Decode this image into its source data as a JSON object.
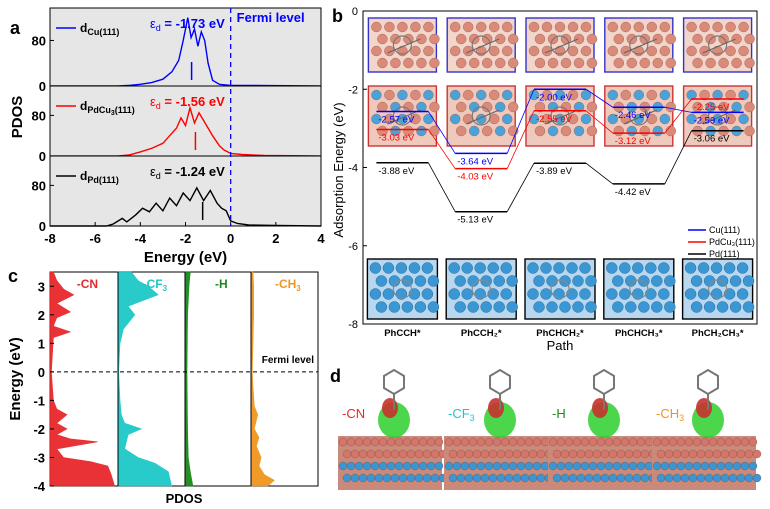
{
  "colors": {
    "cu": "#0000ff",
    "pdcu": "#ff0000",
    "pd": "#000000",
    "cn": "#e8282b",
    "cf3": "#1ec8c8",
    "h": "#1a8a1a",
    "ch3": "#f0961e",
    "slab_fill": "#7fb0d8"
  },
  "panel_letters": {
    "a": "a",
    "b": "b",
    "c": "c",
    "d": "d"
  },
  "chart_data": [
    {
      "id": "a",
      "type": "line",
      "xlabel": "Energy (eV)",
      "ylabel": "PDOS",
      "xlim": [
        -8,
        4
      ],
      "xticks": [
        "-8",
        "-6",
        "-4",
        "-2",
        "0",
        "2",
        "4"
      ],
      "fermi_label": "Fermi level",
      "series": [
        {
          "key": "cu",
          "name": "d",
          "sub": "Cu(111)",
          "ed_label": "ε",
          "ed_sub": "d",
          "ed_value": " = -1.73 eV",
          "yticks": [
            "0",
            "80"
          ],
          "ylim": [
            0,
            130
          ],
          "center": -1.73,
          "points": [
            [
              -8,
              0
            ],
            [
              -5,
              0
            ],
            [
              -4.5,
              1
            ],
            [
              -4,
              3
            ],
            [
              -3.5,
              6
            ],
            [
              -3,
              12
            ],
            [
              -2.6,
              25
            ],
            [
              -2.3,
              45
            ],
            [
              -2.1,
              80
            ],
            [
              -1.9,
              120
            ],
            [
              -1.75,
              85
            ],
            [
              -1.6,
              100
            ],
            [
              -1.45,
              70
            ],
            [
              -1.3,
              95
            ],
            [
              -1.15,
              80
            ],
            [
              -1.0,
              40
            ],
            [
              -0.8,
              10
            ],
            [
              -0.5,
              3
            ],
            [
              0,
              1
            ],
            [
              1,
              1
            ],
            [
              4,
              0
            ]
          ]
        },
        {
          "key": "pdcu",
          "name": "d",
          "sub": "PdCu",
          "sub2": "3",
          "sub3": "(111)",
          "ed_label": "ε",
          "ed_sub": "d",
          "ed_value": " = -1.56 eV",
          "yticks": [
            "0",
            "80"
          ],
          "ylim": [
            0,
            130
          ],
          "center": -1.56,
          "points": [
            [
              -8,
              0
            ],
            [
              -5,
              0
            ],
            [
              -4.5,
              2
            ],
            [
              -4,
              8
            ],
            [
              -3.5,
              15
            ],
            [
              -3,
              25
            ],
            [
              -2.7,
              40
            ],
            [
              -2.4,
              55
            ],
            [
              -2.2,
              75
            ],
            [
              -2.0,
              60
            ],
            [
              -1.8,
              95
            ],
            [
              -1.6,
              65
            ],
            [
              -1.4,
              85
            ],
            [
              -1.2,
              70
            ],
            [
              -1.0,
              55
            ],
            [
              -0.8,
              40
            ],
            [
              -0.5,
              20
            ],
            [
              -0.3,
              12
            ],
            [
              0,
              5
            ],
            [
              0.5,
              3
            ],
            [
              1.5,
              1
            ],
            [
              4,
              0
            ]
          ]
        },
        {
          "key": "pd",
          "name": "d",
          "sub": "Pd(111)",
          "ed_label": "ε",
          "ed_sub": "d",
          "ed_value": " = -1.24 eV",
          "yticks": [
            "0",
            "80"
          ],
          "ylim": [
            0,
            130
          ],
          "center": -1.24,
          "points": [
            [
              -8,
              0
            ],
            [
              -5.5,
              0
            ],
            [
              -5.2,
              4
            ],
            [
              -4.8,
              15
            ],
            [
              -4.6,
              8
            ],
            [
              -4.2,
              22
            ],
            [
              -3.9,
              35
            ],
            [
              -3.6,
              28
            ],
            [
              -3.3,
              45
            ],
            [
              -3.0,
              30
            ],
            [
              -2.7,
              55
            ],
            [
              -2.4,
              40
            ],
            [
              -2.1,
              65
            ],
            [
              -1.8,
              50
            ],
            [
              -1.5,
              75
            ],
            [
              -1.2,
              50
            ],
            [
              -0.9,
              70
            ],
            [
              -0.6,
              45
            ],
            [
              -0.4,
              35
            ],
            [
              -0.2,
              30
            ],
            [
              0,
              10
            ],
            [
              0.3,
              5
            ],
            [
              0.8,
              2
            ],
            [
              2,
              1
            ],
            [
              4,
              0
            ]
          ]
        }
      ]
    },
    {
      "id": "b",
      "type": "line",
      "ylabel": "Adsorption Energy (eV)",
      "xlabel": "Path",
      "ylim": [
        -8,
        0
      ],
      "yticks": [
        "0",
        "-2",
        "-4",
        "-6",
        "-8"
      ],
      "categories": [
        "PhCCH*",
        "PhCCH₂*",
        "PhCHCH₂*",
        "PhCHCH₃*",
        "PhCH₂CH₃*"
      ],
      "legend": [
        {
          "key": "cu",
          "label": "Cu(111)"
        },
        {
          "key": "pdcu",
          "label": "PdCu₃(111)"
        },
        {
          "key": "pd",
          "label": "Pd(111)"
        }
      ],
      "series": [
        {
          "key": "cu",
          "values": [
            -2.57,
            -3.64,
            -2.0,
            -2.46,
            -2.59
          ],
          "labels": [
            "-2.57 eV",
            "-3.64 eV",
            "-2.00 eV",
            "-2.46 eV",
            "-2.59 eV"
          ]
        },
        {
          "key": "pdcu",
          "values": [
            -3.03,
            -4.03,
            -2.55,
            -3.12,
            -2.25
          ],
          "labels": [
            "-3.03 eV",
            "-4.03 eV",
            "-2.55 eV",
            "-3.12 eV",
            "-2.25 eV"
          ]
        },
        {
          "key": "pd",
          "values": [
            -3.88,
            -5.13,
            -3.89,
            -4.42,
            -3.06
          ],
          "labels": [
            "-3.88 eV",
            "-5.13 eV",
            "-3.89 eV",
            "-4.42 eV",
            "-3.06 eV"
          ]
        }
      ]
    },
    {
      "id": "c",
      "type": "area",
      "ylabel": "Energy (eV)",
      "xlabel": "PDOS",
      "ylim": [
        -4,
        3.5
      ],
      "yticks": [
        "3",
        "2",
        "1",
        "0",
        "-1",
        "-2",
        "-3",
        "-4"
      ],
      "fermi_label": "Fermi level",
      "series": [
        {
          "key": "cn",
          "name": "-CN",
          "profile": [
            [
              -4,
              0.95
            ],
            [
              -3.6,
              0.9
            ],
            [
              -3.3,
              0.85
            ],
            [
              -3.15,
              0.6
            ],
            [
              -3.0,
              0.2
            ],
            [
              -2.7,
              0.1
            ],
            [
              -2.45,
              0.7
            ],
            [
              -2.35,
              0.3
            ],
            [
              -2.2,
              0.1
            ],
            [
              -2.0,
              0.25
            ],
            [
              -1.8,
              0.1
            ],
            [
              -1.5,
              0.25
            ],
            [
              -1.3,
              0.1
            ],
            [
              -1.0,
              0.05
            ],
            [
              0,
              0.02
            ],
            [
              1.2,
              0.05
            ],
            [
              1.4,
              0.3
            ],
            [
              1.6,
              0.05
            ],
            [
              1.9,
              0.1
            ],
            [
              2.1,
              0.3
            ],
            [
              2.4,
              0.1
            ],
            [
              2.7,
              0.35
            ],
            [
              2.9,
              0.2
            ],
            [
              3.2,
              0.1
            ],
            [
              3.5,
              0.05
            ]
          ]
        },
        {
          "key": "cf3",
          "name": "-CF",
          "sub": "3",
          "profile": [
            [
              -4,
              0.8
            ],
            [
              -3.5,
              0.75
            ],
            [
              -3.2,
              0.55
            ],
            [
              -3.0,
              0.3
            ],
            [
              -2.7,
              0.1
            ],
            [
              -2.2,
              0.15
            ],
            [
              -2.0,
              0.35
            ],
            [
              -1.8,
              0.1
            ],
            [
              -1.5,
              0.05
            ],
            [
              -1.0,
              0.03
            ],
            [
              0,
              0.01
            ],
            [
              1.0,
              0.03
            ],
            [
              1.5,
              0.08
            ],
            [
              2.0,
              0.25
            ],
            [
              2.3,
              0.15
            ],
            [
              2.7,
              0.6
            ],
            [
              3.0,
              0.45
            ],
            [
              3.2,
              0.3
            ],
            [
              3.5,
              0.2
            ]
          ]
        },
        {
          "key": "h",
          "name": "-H",
          "profile": [
            [
              -4,
              0.12
            ],
            [
              -3.5,
              0.08
            ],
            [
              -3.0,
              0.05
            ],
            [
              -2.0,
              0.04
            ],
            [
              0,
              0.03
            ],
            [
              2.0,
              0.04
            ],
            [
              3.0,
              0.06
            ],
            [
              3.5,
              0.08
            ]
          ]
        },
        {
          "key": "ch3",
          "name": "-CH",
          "sub": "3",
          "profile": [
            [
              -4,
              0.25
            ],
            [
              -3.8,
              0.35
            ],
            [
              -3.6,
              0.2
            ],
            [
              -3.3,
              0.12
            ],
            [
              -3.0,
              0.15
            ],
            [
              -2.6,
              0.08
            ],
            [
              -2.3,
              0.12
            ],
            [
              -2.0,
              0.05
            ],
            [
              -1.5,
              0.1
            ],
            [
              -1.2,
              0.05
            ],
            [
              -0.5,
              0.03
            ],
            [
              0,
              0.02
            ],
            [
              1.0,
              0.03
            ],
            [
              2.0,
              0.04
            ],
            [
              3.0,
              0.04
            ],
            [
              3.5,
              0.03
            ]
          ]
        }
      ]
    }
  ],
  "panel_d": {
    "labels": [
      {
        "key": "cn",
        "name": "-CN"
      },
      {
        "key": "cf3",
        "name": "-CF",
        "sub": "3"
      },
      {
        "key": "h",
        "name": "-H"
      },
      {
        "key": "ch3",
        "name": "-CH",
        "sub": "3"
      }
    ]
  }
}
